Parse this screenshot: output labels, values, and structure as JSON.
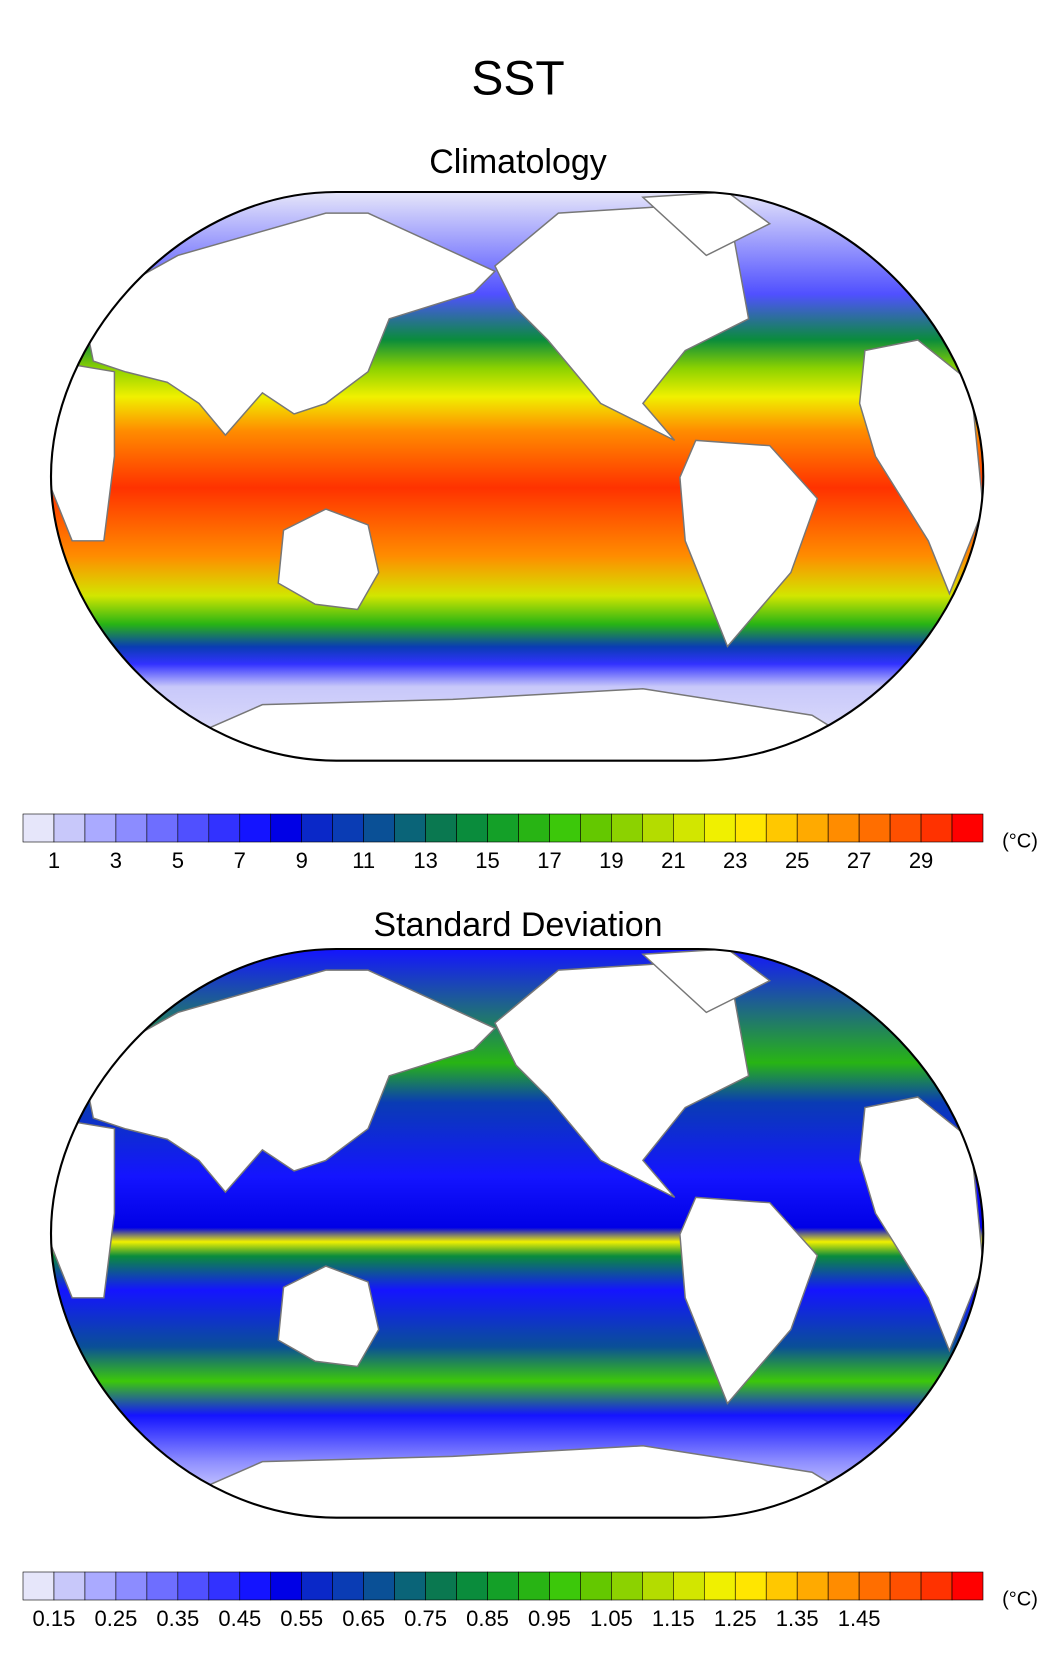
{
  "title": "SST",
  "panels": [
    {
      "title": "Climatology",
      "colorbar": {
        "colors": [
          "#e6e6fa",
          "#c8c8fa",
          "#aaaaff",
          "#8c8cff",
          "#6e6eff",
          "#5050ff",
          "#3232ff",
          "#1414ff",
          "#0000e6",
          "#0a28c8",
          "#0a3cb4",
          "#0a5096",
          "#0a6478",
          "#0a7850",
          "#0a8c3c",
          "#14a028",
          "#28b414",
          "#3cc80a",
          "#64c800",
          "#8cd200",
          "#b4dc00",
          "#d2e600",
          "#f0f000",
          "#ffe600",
          "#ffc800",
          "#ffaa00",
          "#ff8c00",
          "#ff6e00",
          "#ff5000",
          "#ff3200",
          "#ff0000"
        ],
        "labels": [
          "1",
          "3",
          "5",
          "7",
          "9",
          "11",
          "13",
          "15",
          "17",
          "19",
          "21",
          "23",
          "25",
          "27",
          "29"
        ],
        "unit": "(°C)"
      }
    },
    {
      "title": "Standard Deviation",
      "colorbar": {
        "colors": [
          "#e6e6fa",
          "#c8c8fa",
          "#aaaaff",
          "#8c8cff",
          "#6e6eff",
          "#5050ff",
          "#3232ff",
          "#1414ff",
          "#0000e6",
          "#0a28c8",
          "#0a3cb4",
          "#0a5096",
          "#0a6478",
          "#0a7850",
          "#0a8c3c",
          "#14a028",
          "#28b414",
          "#3cc80a",
          "#64c800",
          "#8cd200",
          "#b4dc00",
          "#d2e600",
          "#f0f000",
          "#ffe600",
          "#ffc800",
          "#ffaa00",
          "#ff8c00",
          "#ff6e00",
          "#ff5000",
          "#ff3200",
          "#ff0000"
        ],
        "labels": [
          "0.15",
          "0.25",
          "0.35",
          "0.45",
          "0.55",
          "0.65",
          "0.75",
          "0.85",
          "0.95",
          "1.05",
          "1.15",
          "1.25",
          "1.35",
          "1.45"
        ],
        "unit": "(°C)"
      }
    }
  ]
}
